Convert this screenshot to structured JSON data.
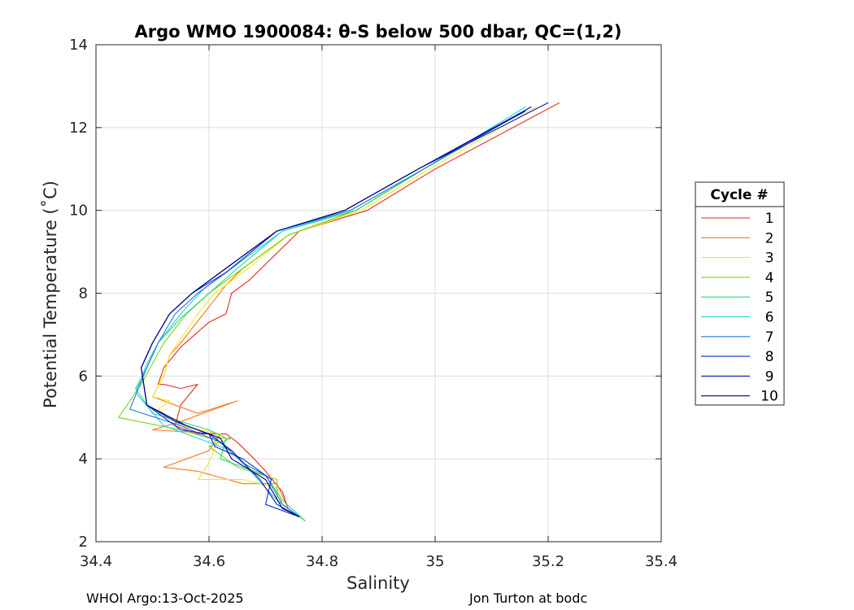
{
  "chart_data": {
    "type": "line",
    "title": "Argo WMO 1900084: θ-S below 500 dbar,  QC=(1,2)",
    "xlabel": "Salinity",
    "ylabel": "Potential Temperature (˚C)",
    "xlim": [
      34.4,
      35.4
    ],
    "ylim": [
      2,
      14
    ],
    "xticks": [
      34.4,
      34.6,
      34.8,
      35,
      35.2,
      35.4
    ],
    "xtick_labels": [
      "34.4",
      "34.6",
      "34.8",
      "35",
      "35.2",
      "35.4"
    ],
    "yticks": [
      2,
      4,
      6,
      8,
      10,
      12,
      14
    ],
    "ytick_labels": [
      "2",
      "4",
      "6",
      "8",
      "10",
      "12",
      "14"
    ],
    "grid": true,
    "legend_title": "Cycle #",
    "legend_position": "outside-right",
    "series": [
      {
        "name": "1",
        "color": "#e62b1c",
        "x": [
          35.22,
          35.0,
          34.88,
          34.76,
          34.67,
          34.64,
          34.63,
          34.6,
          34.55,
          34.52,
          34.51,
          34.52,
          34.55,
          34.58,
          34.55,
          34.54,
          34.58,
          34.63,
          34.65,
          34.68,
          34.7,
          34.73,
          34.74,
          34.77
        ],
        "y": [
          12.6,
          11.0,
          10.0,
          9.5,
          8.3,
          8.0,
          7.5,
          7.3,
          6.7,
          6.2,
          5.8,
          5.8,
          5.7,
          5.8,
          5.3,
          4.8,
          4.6,
          4.6,
          4.4,
          4.0,
          3.7,
          3.2,
          2.8,
          2.5
        ]
      },
      {
        "name": "2",
        "color": "#f57a1a",
        "x": [
          35.17,
          34.98,
          34.86,
          34.74,
          34.66,
          34.63,
          34.59,
          34.55,
          34.53,
          34.52,
          34.5,
          34.58,
          34.65,
          34.55,
          34.5,
          34.62,
          34.6,
          34.52,
          34.58,
          34.66,
          34.72,
          34.74,
          34.77
        ],
        "y": [
          12.5,
          11.0,
          10.0,
          9.4,
          8.6,
          8.2,
          7.5,
          6.8,
          6.5,
          6.0,
          5.5,
          5.1,
          5.4,
          4.9,
          4.7,
          4.6,
          4.2,
          3.8,
          3.7,
          3.4,
          3.4,
          2.8,
          2.5
        ]
      },
      {
        "name": "3",
        "color": "#f2e81a",
        "x": [
          35.18,
          34.99,
          34.87,
          34.74,
          34.66,
          34.61,
          34.58,
          34.55,
          34.53,
          34.52,
          34.5,
          34.53,
          34.51,
          34.55,
          34.62,
          34.6,
          34.58,
          34.66,
          34.72,
          34.73,
          34.77
        ],
        "y": [
          12.5,
          11.0,
          10.0,
          9.4,
          8.5,
          8.0,
          7.5,
          6.9,
          6.5,
          6.0,
          5.5,
          5.4,
          5.2,
          4.8,
          4.6,
          3.9,
          3.5,
          3.5,
          3.3,
          2.9,
          2.5
        ]
      },
      {
        "name": "4",
        "color": "#78d21e",
        "x": [
          35.17,
          34.98,
          34.86,
          34.74,
          34.65,
          34.6,
          34.56,
          34.52,
          34.5,
          34.48,
          34.44,
          34.55,
          34.6,
          34.64,
          34.6,
          34.65,
          34.72,
          34.72,
          34.76
        ],
        "y": [
          12.5,
          11.0,
          10.0,
          9.4,
          8.5,
          8.0,
          7.5,
          6.8,
          6.3,
          5.8,
          5.0,
          4.7,
          4.5,
          4.5,
          4.3,
          3.8,
          3.5,
          3.0,
          2.6
        ]
      },
      {
        "name": "5",
        "color": "#2dd778",
        "x": [
          35.17,
          34.98,
          34.86,
          34.73,
          34.65,
          34.6,
          34.55,
          34.51,
          34.49,
          34.47,
          34.5,
          34.6,
          34.63,
          34.62,
          34.7,
          34.73,
          34.77
        ],
        "y": [
          12.5,
          11.0,
          10.0,
          9.5,
          8.6,
          8.0,
          7.4,
          6.8,
          6.2,
          5.7,
          5.1,
          4.7,
          4.5,
          4.0,
          3.6,
          3.0,
          2.5
        ]
      },
      {
        "name": "6",
        "color": "#1ed2dc",
        "x": [
          35.16,
          34.98,
          34.85,
          34.73,
          34.64,
          34.59,
          34.55,
          34.51,
          34.49,
          34.47,
          34.52,
          34.6,
          34.64,
          34.68,
          34.72,
          34.76
        ],
        "y": [
          12.5,
          11.0,
          10.0,
          9.5,
          8.6,
          8.1,
          7.5,
          6.8,
          6.3,
          5.6,
          4.8,
          4.4,
          4.2,
          3.6,
          3.0,
          2.6
        ]
      },
      {
        "name": "7",
        "color": "#1e78e6",
        "x": [
          35.17,
          34.98,
          34.85,
          34.72,
          34.63,
          34.58,
          34.54,
          34.51,
          34.49,
          34.46,
          34.55,
          34.62,
          34.66,
          34.7,
          34.73,
          34.76
        ],
        "y": [
          12.5,
          11.0,
          10.0,
          9.5,
          8.5,
          8.0,
          7.5,
          6.8,
          6.2,
          5.2,
          4.8,
          4.4,
          3.9,
          3.6,
          2.9,
          2.6
        ]
      },
      {
        "name": "8",
        "color": "#0a2adc",
        "x": [
          35.17,
          34.97,
          34.84,
          34.72,
          34.63,
          34.57,
          34.53,
          34.5,
          34.48,
          34.49,
          34.55,
          34.6,
          34.61,
          34.66,
          34.71,
          34.7,
          34.76
        ],
        "y": [
          12.5,
          11.0,
          10.0,
          9.5,
          8.5,
          8.0,
          7.5,
          6.8,
          6.2,
          5.3,
          4.7,
          4.6,
          4.3,
          4.0,
          3.5,
          2.9,
          2.6
        ]
      },
      {
        "name": "9",
        "color": "#0a14b4",
        "x": [
          35.2,
          34.97,
          34.84,
          34.72,
          34.62,
          34.57,
          34.53,
          34.5,
          34.48,
          34.49,
          34.54,
          34.6,
          34.64,
          34.69,
          34.72,
          34.76
        ],
        "y": [
          12.6,
          11.0,
          10.0,
          9.5,
          8.5,
          8.0,
          7.5,
          6.8,
          6.2,
          5.3,
          4.9,
          4.6,
          4.2,
          3.5,
          2.9,
          2.6
        ]
      },
      {
        "name": "10",
        "color": "#00007a",
        "x": [
          35.16,
          34.97,
          34.84,
          34.72,
          34.62,
          34.57,
          34.53,
          34.5,
          34.48,
          34.49,
          34.56,
          34.62,
          34.64,
          34.7,
          34.73,
          34.76
        ],
        "y": [
          12.4,
          11.0,
          10.0,
          9.5,
          8.5,
          8.0,
          7.5,
          6.8,
          6.2,
          5.3,
          4.8,
          4.5,
          4.0,
          3.5,
          2.8,
          2.6
        ]
      }
    ]
  },
  "footer": {
    "left": "WHOI Argo:13-Oct-2025",
    "right": "Jon Turton at bodc"
  }
}
